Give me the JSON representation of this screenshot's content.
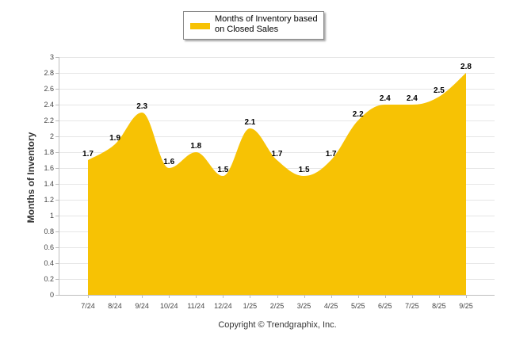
{
  "chart_data": {
    "type": "area",
    "title": "",
    "legend": {
      "label": "Months of Inventory based on Closed Sales",
      "position": "top-center"
    },
    "ylabel": "Months of Inventory",
    "xlabel": "",
    "ylim": [
      0,
      3
    ],
    "yticks": [
      "0",
      "0.2",
      "0.4",
      "0.6",
      "0.8",
      "1",
      "1.2",
      "1.4",
      "1.6",
      "1.8",
      "2",
      "2.2",
      "2.4",
      "2.6",
      "2.8",
      "3"
    ],
    "categories": [
      "7/24",
      "8/24",
      "9/24",
      "10/24",
      "11/24",
      "12/24",
      "1/25",
      "2/25",
      "3/25",
      "4/25",
      "5/25",
      "6/25",
      "7/25",
      "8/25",
      "9/25"
    ],
    "values": [
      1.7,
      1.9,
      2.3,
      1.6,
      1.8,
      1.5,
      2.1,
      1.7,
      1.5,
      1.7,
      2.2,
      2.4,
      2.4,
      2.5,
      2.8
    ],
    "value_labels": [
      "1.7",
      "1.9",
      "2.3",
      "1.6",
      "1.8",
      "1.5",
      "2.1",
      "1.7",
      "1.5",
      "1.7",
      "2.2",
      "2.4",
      "2.4",
      "2.5",
      "2.8"
    ],
    "grid": true,
    "color": "#f7c204"
  },
  "footer": {
    "copyright": "Copyright © Trendgraphix, Inc."
  }
}
